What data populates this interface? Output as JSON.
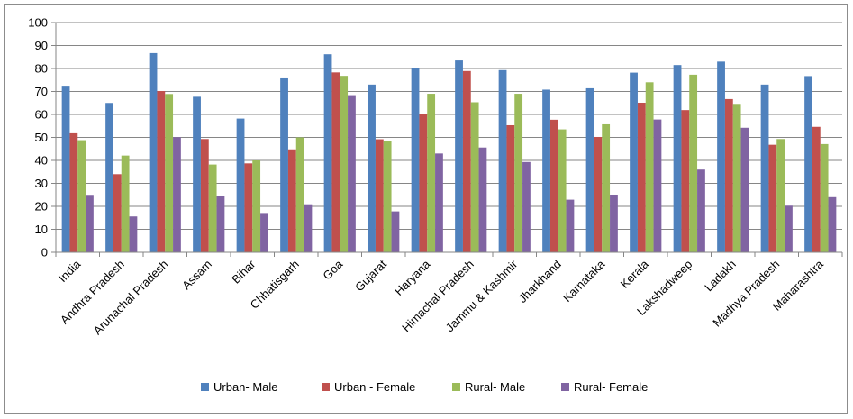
{
  "chart_data": {
    "type": "bar",
    "title": "",
    "xlabel": "",
    "ylabel": "",
    "ylim": [
      0,
      100
    ],
    "yticks": [
      0,
      10,
      20,
      30,
      40,
      50,
      60,
      70,
      80,
      90,
      100
    ],
    "grid": true,
    "legend_position": "bottom",
    "categories": [
      "India",
      "Andhra Pradesh",
      "Arunachal Pradesh",
      "Assam",
      "Bihar",
      "Chhatisgarh",
      "Goa",
      "Gujarat",
      "Haryana",
      "Himachal Pradesh",
      "Jammu & Kashmir",
      "Jharkhand",
      "Karnataka",
      "Kerala",
      "Lakshadweep",
      "Ladakh",
      "Madhya Pradesh",
      "Maharashtra"
    ],
    "series": [
      {
        "name": "Urban- Male",
        "color": "#4f81bd",
        "values": [
          72.5,
          65,
          86.7,
          67.7,
          58.2,
          75.7,
          86.2,
          73,
          80,
          83.5,
          79.3,
          70.8,
          71.4,
          78.2,
          81.5,
          83,
          73,
          76.7
        ]
      },
      {
        "name": "Urban - Female",
        "color": "#c0504d",
        "values": [
          51.8,
          34,
          70.2,
          49.3,
          38.7,
          44.8,
          78.3,
          49.2,
          60.3,
          78.9,
          55.3,
          57.7,
          50.2,
          65.1,
          61.9,
          66.7,
          46.8,
          54.6
        ]
      },
      {
        "name": "Rural- Male",
        "color": "#9bbb59",
        "values": [
          48.8,
          42.1,
          68.9,
          38.2,
          40,
          50,
          76.8,
          48.4,
          69,
          65.3,
          69,
          53.5,
          55.7,
          74,
          77.3,
          64.6,
          49.3,
          47.1
        ]
      },
      {
        "name": "Rural- Female",
        "color": "#8064a2",
        "values": [
          25,
          15.6,
          50.1,
          24.6,
          17.1,
          20.9,
          68.4,
          17.8,
          43,
          45.6,
          39.3,
          22.9,
          25.1,
          57.8,
          36,
          54.2,
          20.3,
          24
        ]
      }
    ]
  }
}
